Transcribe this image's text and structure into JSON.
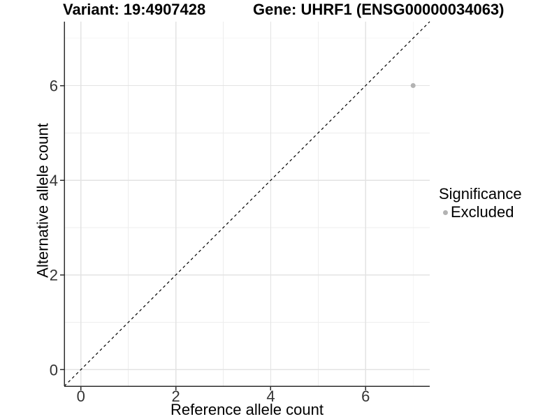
{
  "header": {
    "variant_title": "Variant: 19:4907428",
    "gene_title": "Gene: UHRF1 (ENSG00000034063)"
  },
  "chart_data": {
    "type": "scatter",
    "xlabel": "Reference allele count",
    "ylabel": "Alternative allele count",
    "xlim": [
      -0.35,
      7.35
    ],
    "ylim": [
      -0.35,
      7.35
    ],
    "x_ticks": [
      0,
      2,
      4,
      6
    ],
    "y_ticks": [
      0,
      2,
      4,
      6
    ],
    "x_minor_grid": [
      1,
      3,
      5,
      7
    ],
    "y_minor_grid": [
      1,
      3,
      5,
      7
    ],
    "grid": true,
    "identity_line": {
      "style": "dashed",
      "slope": 1,
      "intercept": 0,
      "color": "#000000"
    },
    "series": [
      {
        "name": "Excluded",
        "color": "#b3b3b3",
        "points": [
          [
            7,
            6
          ]
        ]
      }
    ],
    "legend": {
      "position": "right",
      "title": "Significance",
      "items": [
        {
          "label": "Excluded",
          "color": "#b3b3b3"
        }
      ]
    },
    "colors": {
      "axis": "#2e2e2e",
      "grid_major": "#e3e3e3",
      "grid_minor": "#ededed",
      "tick_label": "#333333"
    }
  }
}
